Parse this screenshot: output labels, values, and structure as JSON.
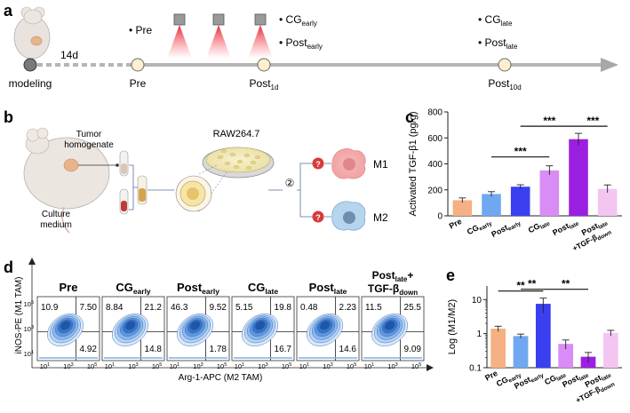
{
  "panels": {
    "a": "a",
    "b": "b",
    "c": "c",
    "d": "d",
    "e": "e"
  },
  "panel_a": {
    "duration": "14d",
    "timeline_labels": {
      "modeling": "modeling",
      "pre": "Pre",
      "post1d_main": "Post",
      "post1d_sub": "1d",
      "post10d_main": "Post",
      "post10d_sub": "10d"
    },
    "bullets": {
      "pre": "Pre",
      "cg_early_main": "CG",
      "cg_early_sub": "early",
      "post_early_main": "Post",
      "post_early_sub": "early",
      "cg_late_main": "CG",
      "cg_late_sub": "late",
      "post_late_main": "Post",
      "post_late_sub": "late"
    },
    "laser_count": 3
  },
  "panel_b": {
    "tumor_label_1": "Tumor",
    "tumor_label_2": "homogenate",
    "culture_label_1": "Culture",
    "culture_label_2": "medium",
    "cell_line": "RAW264.7",
    "step1": "①",
    "step2": "②",
    "question": "?",
    "m1": "M1",
    "m2": "M2"
  },
  "panel_d": {
    "y_axis_label": "iNOS-PE (M1 TAM)",
    "x_axis_label": "Arg-1-APC (M2 TAM)",
    "y_ticks": [
      "10",
      "10",
      "10"
    ],
    "y_tick_exps": [
      "5",
      "3",
      "1"
    ],
    "x_ticks": [
      "10",
      "10",
      "10"
    ],
    "x_tick_exps": [
      "1",
      "3",
      "5"
    ],
    "plots": [
      {
        "title_main": "Pre",
        "title_sub": "",
        "title_line2": "",
        "q_ul": "10.9",
        "q_ur": "7.50",
        "q_lr": "4.92"
      },
      {
        "title_main": "CG",
        "title_sub": "early",
        "title_line2": "",
        "q_ul": "8.84",
        "q_ur": "21.2",
        "q_lr": "14.8"
      },
      {
        "title_main": "Post",
        "title_sub": "early",
        "title_line2": "",
        "q_ul": "46.3",
        "q_ur": "9.52",
        "q_lr": "1.78"
      },
      {
        "title_main": "CG",
        "title_sub": "late",
        "title_line2": "",
        "q_ul": "5.15",
        "q_ur": "19.8",
        "q_lr": "16.7"
      },
      {
        "title_main": "Post",
        "title_sub": "late",
        "title_line2": "",
        "q_ul": "0.48",
        "q_ur": "2.23",
        "q_lr": "14.6"
      },
      {
        "title_main": "Post",
        "title_sub": "late",
        "title_tail": "+",
        "title_line2_main": "TGF-β",
        "title_line2_sub": "down",
        "q_ul": "11.5",
        "q_ur": "25.5",
        "q_lr": "9.09"
      }
    ]
  },
  "chart_data": [
    {
      "type": "bar",
      "panel": "c",
      "ylabel": "Activated TGF-β1 (pg/g)",
      "xlabel": "",
      "ylim": [
        0,
        800
      ],
      "yticks": [
        0,
        200,
        400,
        600,
        800
      ],
      "categories": [
        {
          "main": "Pre",
          "sub": "",
          "extra_main": "",
          "extra_sub": ""
        },
        {
          "main": "CG",
          "sub": "early",
          "extra_main": "",
          "extra_sub": ""
        },
        {
          "main": "Post",
          "sub": "early",
          "extra_main": "",
          "extra_sub": ""
        },
        {
          "main": "CG",
          "sub": "late",
          "extra_main": "",
          "extra_sub": ""
        },
        {
          "main": "Post",
          "sub": "late",
          "extra_main": "",
          "extra_sub": ""
        },
        {
          "main": "Post",
          "sub": "late",
          "extra_main": "+TGF-β",
          "extra_sub": "down"
        }
      ],
      "values": [
        120,
        168,
        224,
        350,
        590,
        208
      ],
      "errors": [
        18,
        18,
        15,
        35,
        45,
        30
      ],
      "colors": [
        "#f5b183",
        "#6fa8f0",
        "#3a3ff0",
        "#d98cf5",
        "#9b1fe0",
        "#f3c6f2"
      ],
      "significance": [
        {
          "from": 1,
          "to": 3,
          "label": "***",
          "level": 0
        },
        {
          "from": 2,
          "to": 4,
          "label": "***",
          "level": 1
        },
        {
          "from": 4,
          "to": 5,
          "label": "***",
          "level": 1
        }
      ]
    },
    {
      "type": "bar",
      "panel": "e",
      "ylabel": "Log (M1/M2)",
      "xlabel": "",
      "yscale": "log",
      "ylim": [
        0.1,
        25
      ],
      "yticks": [
        0.1,
        1,
        10
      ],
      "ytick_labels": [
        "0.1",
        "1",
        "10"
      ],
      "categories": [
        {
          "main": "Pre",
          "sub": "",
          "extra_main": "",
          "extra_sub": ""
        },
        {
          "main": "CG",
          "sub": "early",
          "extra_main": "",
          "extra_sub": ""
        },
        {
          "main": "Post",
          "sub": "early",
          "extra_main": "",
          "extra_sub": ""
        },
        {
          "main": "CG",
          "sub": "late",
          "extra_main": "",
          "extra_sub": ""
        },
        {
          "main": "Post",
          "sub": "late",
          "extra_main": "",
          "extra_sub": ""
        },
        {
          "main": "Post",
          "sub": "late",
          "extra_main": "+TGF-β",
          "extra_sub": "down"
        }
      ],
      "values": [
        1.4,
        0.85,
        7.5,
        0.5,
        0.21,
        1.05
      ],
      "errors": [
        0.25,
        0.12,
        3.5,
        0.15,
        0.07,
        0.2
      ],
      "colors": [
        "#f5b183",
        "#6fa8f0",
        "#3a3ff0",
        "#d98cf5",
        "#9b1fe0",
        "#f3c6f2"
      ],
      "significance": [
        {
          "from": 0,
          "to": 2,
          "label": "**",
          "level": 1
        },
        {
          "from": 1,
          "to": 2,
          "label": "**",
          "level": 0
        },
        {
          "from": 2,
          "to": 4,
          "label": "**",
          "level": 0
        }
      ]
    }
  ]
}
